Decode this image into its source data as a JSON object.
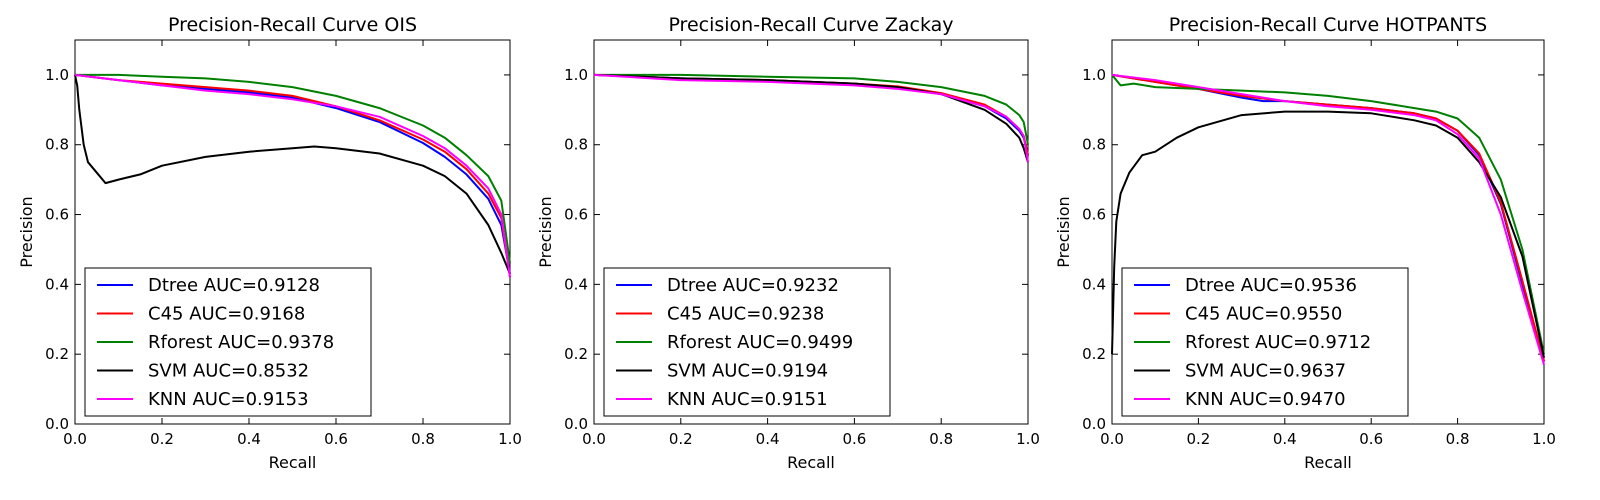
{
  "colors": {
    "Dtree": "#0000ff",
    "C45": "#ff0000",
    "Rforest": "#008000",
    "SVM": "#000000",
    "KNN": "#ff00ff"
  },
  "chart_data": [
    {
      "type": "line",
      "title": "Precision-Recall Curve OIS",
      "xlabel": "Recall",
      "ylabel": "Precision",
      "xlim": [
        0,
        1
      ],
      "ylim": [
        0,
        1.1
      ],
      "xticks": [
        "0.0",
        "0.2",
        "0.4",
        "0.6",
        "0.8",
        "1.0"
      ],
      "yticks": [
        "0.0",
        "0.2",
        "0.4",
        "0.6",
        "0.8",
        "1.0"
      ],
      "grid": false,
      "legend_position": "lower-left",
      "series": [
        {
          "name": "Dtree AUC=0.9128",
          "key": "Dtree",
          "x": [
            0,
            0.1,
            0.2,
            0.3,
            0.4,
            0.5,
            0.6,
            0.7,
            0.8,
            0.85,
            0.9,
            0.95,
            0.98,
            1.0
          ],
          "y": [
            1.0,
            0.985,
            0.97,
            0.96,
            0.95,
            0.935,
            0.905,
            0.865,
            0.805,
            0.765,
            0.715,
            0.645,
            0.57,
            0.43
          ]
        },
        {
          "name": "C45 AUC=0.9168",
          "key": "C45",
          "x": [
            0,
            0.1,
            0.2,
            0.3,
            0.4,
            0.5,
            0.6,
            0.7,
            0.8,
            0.85,
            0.9,
            0.95,
            0.98,
            1.0
          ],
          "y": [
            1.0,
            0.985,
            0.975,
            0.965,
            0.955,
            0.94,
            0.91,
            0.87,
            0.815,
            0.78,
            0.73,
            0.66,
            0.59,
            0.42
          ]
        },
        {
          "name": "Rforest AUC=0.9378",
          "key": "Rforest",
          "x": [
            0,
            0.1,
            0.2,
            0.3,
            0.4,
            0.5,
            0.6,
            0.7,
            0.8,
            0.85,
            0.9,
            0.95,
            0.98,
            1.0
          ],
          "y": [
            1.0,
            1.0,
            0.995,
            0.99,
            0.98,
            0.965,
            0.94,
            0.905,
            0.855,
            0.82,
            0.77,
            0.71,
            0.64,
            0.46
          ]
        },
        {
          "name": "SVM AUC=0.8532",
          "key": "SVM",
          "x": [
            0,
            0.005,
            0.01,
            0.02,
            0.03,
            0.05,
            0.07,
            0.1,
            0.15,
            0.2,
            0.3,
            0.4,
            0.5,
            0.55,
            0.6,
            0.7,
            0.8,
            0.85,
            0.9,
            0.95,
            0.98,
            1.0
          ],
          "y": [
            1.0,
            0.97,
            0.9,
            0.8,
            0.75,
            0.72,
            0.69,
            0.7,
            0.715,
            0.74,
            0.765,
            0.78,
            0.79,
            0.795,
            0.79,
            0.775,
            0.74,
            0.71,
            0.66,
            0.57,
            0.49,
            0.43
          ]
        },
        {
          "name": "KNN AUC=0.9153",
          "key": "KNN",
          "x": [
            0,
            0.1,
            0.2,
            0.3,
            0.4,
            0.5,
            0.6,
            0.7,
            0.8,
            0.85,
            0.9,
            0.95,
            0.98,
            1.0
          ],
          "y": [
            1.0,
            0.985,
            0.97,
            0.955,
            0.945,
            0.93,
            0.91,
            0.88,
            0.825,
            0.79,
            0.74,
            0.675,
            0.6,
            0.42
          ]
        }
      ]
    },
    {
      "type": "line",
      "title": "Precision-Recall Curve Zackay",
      "xlabel": "Recall",
      "ylabel": "Precision",
      "xlim": [
        0,
        1
      ],
      "ylim": [
        0,
        1.1
      ],
      "xticks": [
        "0.0",
        "0.2",
        "0.4",
        "0.6",
        "0.8",
        "1.0"
      ],
      "yticks": [
        "0.0",
        "0.2",
        "0.4",
        "0.6",
        "0.8",
        "1.0"
      ],
      "grid": false,
      "legend_position": "lower-left",
      "series": [
        {
          "name": "Dtree AUC=0.9232",
          "key": "Dtree",
          "x": [
            0,
            0.2,
            0.4,
            0.6,
            0.7,
            0.8,
            0.9,
            0.95,
            0.98,
            0.99,
            1.0
          ],
          "y": [
            1.0,
            0.99,
            0.985,
            0.975,
            0.965,
            0.945,
            0.91,
            0.875,
            0.84,
            0.82,
            0.77
          ]
        },
        {
          "name": "C45 AUC=0.9238",
          "key": "C45",
          "x": [
            0,
            0.2,
            0.4,
            0.6,
            0.7,
            0.8,
            0.9,
            0.95,
            0.98,
            0.99,
            1.0
          ],
          "y": [
            1.0,
            0.99,
            0.985,
            0.975,
            0.967,
            0.948,
            0.915,
            0.88,
            0.845,
            0.825,
            0.77
          ]
        },
        {
          "name": "Rforest AUC=0.9499",
          "key": "Rforest",
          "x": [
            0,
            0.2,
            0.4,
            0.6,
            0.7,
            0.8,
            0.9,
            0.95,
            0.98,
            0.99,
            1.0
          ],
          "y": [
            1.0,
            1.0,
            0.995,
            0.99,
            0.98,
            0.965,
            0.94,
            0.915,
            0.885,
            0.865,
            0.8
          ]
        },
        {
          "name": "SVM AUC=0.9194",
          "key": "SVM",
          "x": [
            0,
            0.2,
            0.4,
            0.6,
            0.7,
            0.8,
            0.9,
            0.95,
            0.98,
            0.99,
            1.0
          ],
          "y": [
            1.0,
            0.99,
            0.985,
            0.975,
            0.965,
            0.945,
            0.9,
            0.86,
            0.82,
            0.79,
            0.75
          ]
        },
        {
          "name": "KNN AUC=0.9151",
          "key": "KNN",
          "x": [
            0,
            0.2,
            0.4,
            0.6,
            0.7,
            0.8,
            0.9,
            0.95,
            0.98,
            0.99,
            1.0
          ],
          "y": [
            1.0,
            0.985,
            0.98,
            0.97,
            0.96,
            0.945,
            0.91,
            0.88,
            0.845,
            0.825,
            0.75
          ]
        }
      ]
    },
    {
      "type": "line",
      "title": "Precision-Recall Curve HOTPANTS",
      "xlabel": "Recall",
      "ylabel": "Precision",
      "xlim": [
        0,
        1
      ],
      "ylim": [
        0,
        1.1
      ],
      "xticks": [
        "0.0",
        "0.2",
        "0.4",
        "0.6",
        "0.8",
        "1.0"
      ],
      "yticks": [
        "0.0",
        "0.2",
        "0.4",
        "0.6",
        "0.8",
        "1.0"
      ],
      "grid": false,
      "legend_position": "lower-left",
      "series": [
        {
          "name": "Dtree AUC=0.9536",
          "key": "Dtree",
          "x": [
            0,
            0.1,
            0.2,
            0.3,
            0.35,
            0.4,
            0.5,
            0.6,
            0.7,
            0.75,
            0.8,
            0.85,
            0.9,
            0.95,
            1.0
          ],
          "y": [
            1.0,
            0.98,
            0.96,
            0.935,
            0.925,
            0.925,
            0.915,
            0.905,
            0.89,
            0.875,
            0.84,
            0.77,
            0.63,
            0.4,
            0.18
          ]
        },
        {
          "name": "C45 AUC=0.9550",
          "key": "C45",
          "x": [
            0,
            0.1,
            0.2,
            0.3,
            0.4,
            0.5,
            0.6,
            0.7,
            0.75,
            0.8,
            0.85,
            0.9,
            0.95,
            1.0
          ],
          "y": [
            1.0,
            0.98,
            0.96,
            0.94,
            0.925,
            0.915,
            0.905,
            0.89,
            0.875,
            0.84,
            0.775,
            0.635,
            0.41,
            0.18
          ]
        },
        {
          "name": "Rforest AUC=0.9712",
          "key": "Rforest",
          "x": [
            0,
            0.01,
            0.02,
            0.05,
            0.1,
            0.2,
            0.3,
            0.4,
            0.5,
            0.6,
            0.7,
            0.75,
            0.8,
            0.85,
            0.9,
            0.95,
            1.0
          ],
          "y": [
            1.0,
            0.985,
            0.97,
            0.975,
            0.965,
            0.96,
            0.955,
            0.95,
            0.94,
            0.925,
            0.905,
            0.895,
            0.875,
            0.82,
            0.7,
            0.5,
            0.2
          ]
        },
        {
          "name": "SVM AUC=0.9637",
          "key": "SVM",
          "x": [
            0,
            0.005,
            0.01,
            0.02,
            0.04,
            0.07,
            0.1,
            0.15,
            0.2,
            0.3,
            0.4,
            0.5,
            0.6,
            0.7,
            0.75,
            0.8,
            0.85,
            0.9,
            0.95,
            1.0
          ],
          "y": [
            0.2,
            0.45,
            0.58,
            0.66,
            0.72,
            0.77,
            0.78,
            0.82,
            0.85,
            0.885,
            0.895,
            0.895,
            0.89,
            0.87,
            0.855,
            0.82,
            0.75,
            0.65,
            0.48,
            0.19
          ]
        },
        {
          "name": "KNN AUC=0.9470",
          "key": "KNN",
          "x": [
            0,
            0.1,
            0.2,
            0.3,
            0.4,
            0.5,
            0.6,
            0.7,
            0.75,
            0.8,
            0.85,
            0.9,
            0.95,
            1.0
          ],
          "y": [
            1.0,
            0.985,
            0.965,
            0.945,
            0.925,
            0.91,
            0.9,
            0.885,
            0.87,
            0.83,
            0.76,
            0.6,
            0.38,
            0.17
          ]
        }
      ]
    }
  ]
}
